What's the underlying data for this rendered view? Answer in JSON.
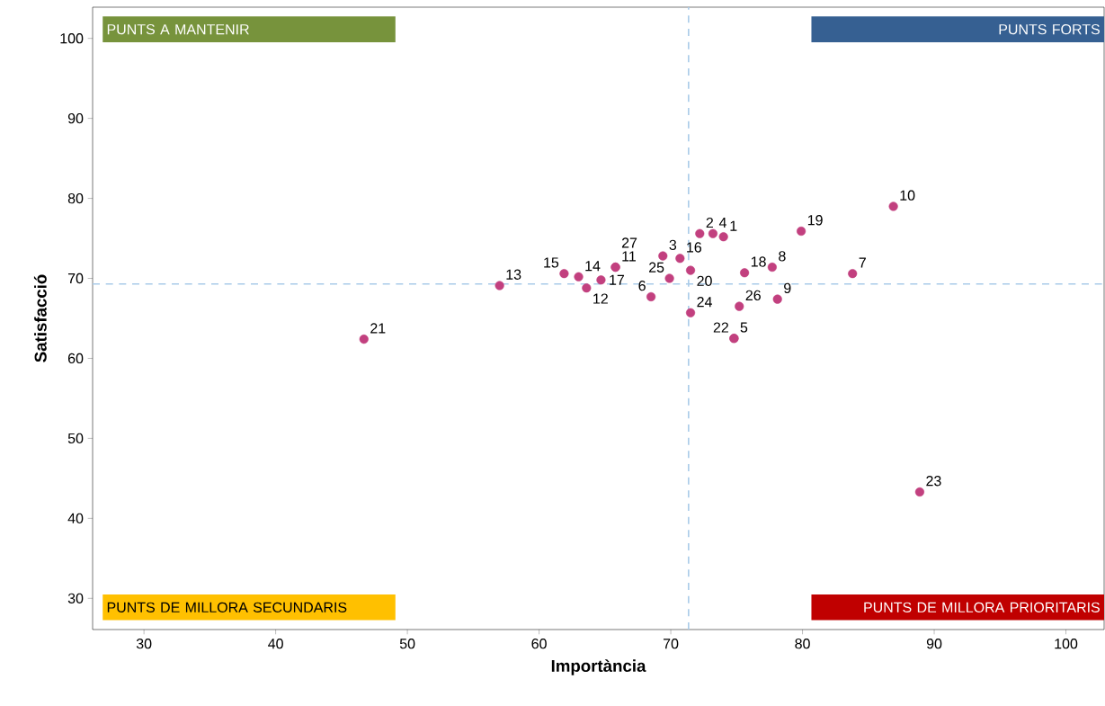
{
  "chart_data": {
    "type": "scatter",
    "xlabel": "Importància",
    "ylabel": "Satisfacció",
    "xlim": [
      26.1,
      102.9
    ],
    "ylim": [
      26.1,
      103.9
    ],
    "xticks": [
      30,
      40,
      50,
      60,
      70,
      80,
      90,
      100
    ],
    "yticks": [
      30,
      40,
      50,
      60,
      70,
      80,
      90,
      100
    ],
    "grid": false,
    "series": [
      {
        "color": "#c2407f",
        "x": [
          74.0,
          72.2,
          69.4,
          73.2,
          74.8,
          68.5,
          83.8,
          77.7,
          78.1,
          86.9,
          65.8,
          63.6,
          57.0,
          63.0,
          61.9,
          70.7,
          64.7,
          75.6,
          79.9,
          71.5,
          46.7,
          74.8,
          88.9,
          71.5,
          69.9,
          75.2,
          65.8
        ],
        "values": [
          75.2,
          75.6,
          72.8,
          75.6,
          62.5,
          67.7,
          70.6,
          71.4,
          67.4,
          79.0,
          71.4,
          68.8,
          69.1,
          70.2,
          70.6,
          72.5,
          69.8,
          70.7,
          75.9,
          71.0,
          62.4,
          62.5,
          43.3,
          65.7,
          70.0,
          66.5,
          71.4
        ]
      }
    ],
    "ref_lines": [
      {
        "axis": "x",
        "value": 71.35,
        "color": "#a9cbe9",
        "line_style": "dashed"
      },
      {
        "axis": "y",
        "value": 69.3,
        "color": "#a9cbe9",
        "line_style": "dashed"
      }
    ],
    "annotations": [
      "PUNTS A MANTENIR",
      "PUNTS FORTS",
      "PUNTS DE MILLORA SECUNDARIS",
      "PUNTS DE MILLORA PRIORITARIS",
      {
        "text": "1",
        "x": 74.0,
        "y": 75.2
      },
      {
        "text": "2",
        "x": 72.2,
        "y": 75.6
      },
      {
        "text": "3",
        "x": 69.4,
        "y": 72.8
      },
      {
        "text": "4",
        "x": 73.2,
        "y": 75.6
      },
      {
        "text": "5",
        "x": 74.8,
        "y": 62.5
      },
      {
        "text": "6",
        "x": 68.5,
        "y": 67.7
      },
      {
        "text": "7",
        "x": 83.8,
        "y": 70.6
      },
      {
        "text": "8",
        "x": 77.7,
        "y": 71.4
      },
      {
        "text": "9",
        "x": 78.1,
        "y": 67.4
      },
      {
        "text": "10",
        "x": 86.9,
        "y": 79.0
      },
      {
        "text": "11",
        "x": 65.8,
        "y": 71.4
      },
      {
        "text": "12",
        "x": 63.6,
        "y": 68.8
      },
      {
        "text": "13",
        "x": 57.0,
        "y": 69.1
      },
      {
        "text": "14",
        "x": 63.0,
        "y": 70.2
      },
      {
        "text": "15",
        "x": 61.9,
        "y": 70.6
      },
      {
        "text": "16",
        "x": 70.7,
        "y": 72.5
      },
      {
        "text": "17",
        "x": 64.7,
        "y": 69.8
      },
      {
        "text": "18",
        "x": 75.6,
        "y": 70.7
      },
      {
        "text": "19",
        "x": 79.9,
        "y": 75.9
      },
      {
        "text": "20",
        "x": 71.5,
        "y": 71.0
      },
      {
        "text": "21",
        "x": 46.7,
        "y": 62.4
      },
      {
        "text": "22",
        "x": 74.8,
        "y": 62.5
      },
      {
        "text": "23",
        "x": 88.9,
        "y": 43.3
      },
      {
        "text": "24",
        "x": 71.5,
        "y": 65.7
      },
      {
        "text": "25",
        "x": 69.9,
        "y": 70.0
      },
      {
        "text": "26",
        "x": 75.2,
        "y": 66.5
      },
      {
        "text": "27",
        "x": 65.8,
        "y": 71.4
      }
    ]
  }
}
